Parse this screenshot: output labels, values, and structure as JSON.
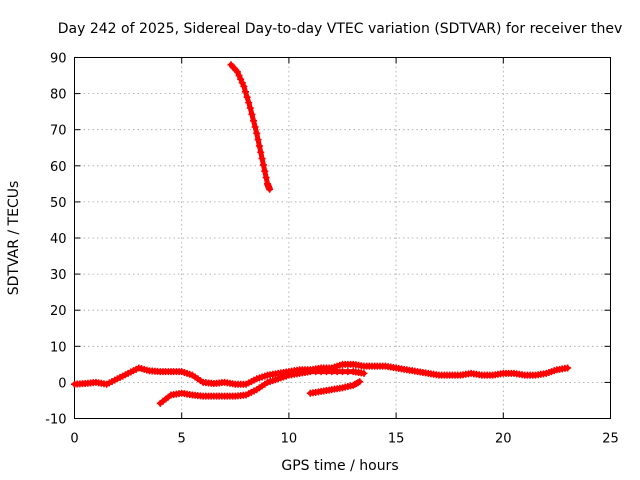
{
  "chart_data": {
    "type": "scatter",
    "title": "Day 242 of 2025, Sidereal Day-to-day VTEC variation (SDTVAR) for receiver thev",
    "xlabel": "GPS time / hours",
    "ylabel": "SDTVAR / TECUs",
    "xlim": [
      0,
      25
    ],
    "ylim": [
      -10,
      90
    ],
    "xticks": [
      "0",
      "5",
      "10",
      "15",
      "20",
      "25"
    ],
    "yticks": [
      "-10",
      "0",
      "10",
      "20",
      "30",
      "40",
      "50",
      "60",
      "70",
      "80",
      "90"
    ],
    "grid": true,
    "color": "#ff0000",
    "series": [
      {
        "name": "main-track",
        "points": [
          [
            0.0,
            -0.5
          ],
          [
            0.5,
            -0.3
          ],
          [
            1.0,
            0.0
          ],
          [
            1.5,
            -0.5
          ],
          [
            2.0,
            1.0
          ],
          [
            2.5,
            2.5
          ],
          [
            3.0,
            4.0
          ],
          [
            3.5,
            3.2
          ],
          [
            4.0,
            3.0
          ],
          [
            4.5,
            3.0
          ],
          [
            5.0,
            3.0
          ],
          [
            5.5,
            2.0
          ],
          [
            6.0,
            0.0
          ],
          [
            6.5,
            -0.3
          ],
          [
            7.0,
            0.0
          ],
          [
            7.5,
            -0.5
          ],
          [
            8.0,
            -0.5
          ],
          [
            8.5,
            1.0
          ],
          [
            9.0,
            2.0
          ],
          [
            9.5,
            2.5
          ],
          [
            10.0,
            3.0
          ],
          [
            10.5,
            3.5
          ],
          [
            11.0,
            3.5
          ],
          [
            11.5,
            4.0
          ],
          [
            12.0,
            4.0
          ],
          [
            12.5,
            5.0
          ],
          [
            13.0,
            5.0
          ],
          [
            13.5,
            4.5
          ],
          [
            14.0,
            4.5
          ],
          [
            14.5,
            4.5
          ],
          [
            15.0,
            4.0
          ],
          [
            15.5,
            3.5
          ],
          [
            16.0,
            3.0
          ],
          [
            16.5,
            2.5
          ],
          [
            17.0,
            2.0
          ],
          [
            17.5,
            2.0
          ],
          [
            18.0,
            2.0
          ],
          [
            18.5,
            2.5
          ],
          [
            19.0,
            2.0
          ],
          [
            19.5,
            2.0
          ],
          [
            20.0,
            2.5
          ],
          [
            20.5,
            2.5
          ],
          [
            21.0,
            2.0
          ],
          [
            21.5,
            2.0
          ],
          [
            22.0,
            2.5
          ],
          [
            22.5,
            3.5
          ],
          [
            23.0,
            4.0
          ]
        ]
      },
      {
        "name": "lower-track",
        "points": [
          [
            4.0,
            -5.8
          ],
          [
            4.5,
            -3.5
          ],
          [
            5.0,
            -3.0
          ],
          [
            5.5,
            -3.5
          ],
          [
            6.0,
            -3.8
          ],
          [
            6.5,
            -3.8
          ],
          [
            7.0,
            -3.8
          ],
          [
            7.5,
            -3.8
          ],
          [
            8.0,
            -3.5
          ],
          [
            8.5,
            -2.0
          ],
          [
            9.0,
            0.0
          ],
          [
            9.5,
            1.0
          ],
          [
            10.0,
            2.0
          ],
          [
            10.5,
            2.5
          ],
          [
            11.0,
            3.0
          ],
          [
            12.0,
            3.0
          ],
          [
            13.0,
            3.0
          ],
          [
            13.5,
            2.5
          ]
        ]
      },
      {
        "name": "late-low-track",
        "points": [
          [
            11.0,
            -3.0
          ],
          [
            11.5,
            -2.5
          ],
          [
            12.0,
            -2.0
          ],
          [
            12.5,
            -1.5
          ],
          [
            13.0,
            -0.8
          ],
          [
            13.3,
            0.2
          ]
        ]
      },
      {
        "name": "high-arc",
        "points": [
          [
            7.3,
            88.0
          ],
          [
            7.6,
            86.0
          ],
          [
            7.9,
            82.0
          ],
          [
            8.2,
            76.0
          ],
          [
            8.5,
            69.0
          ],
          [
            8.75,
            62.0
          ],
          [
            9.0,
            55.0
          ],
          [
            9.1,
            53.5
          ]
        ]
      }
    ]
  }
}
